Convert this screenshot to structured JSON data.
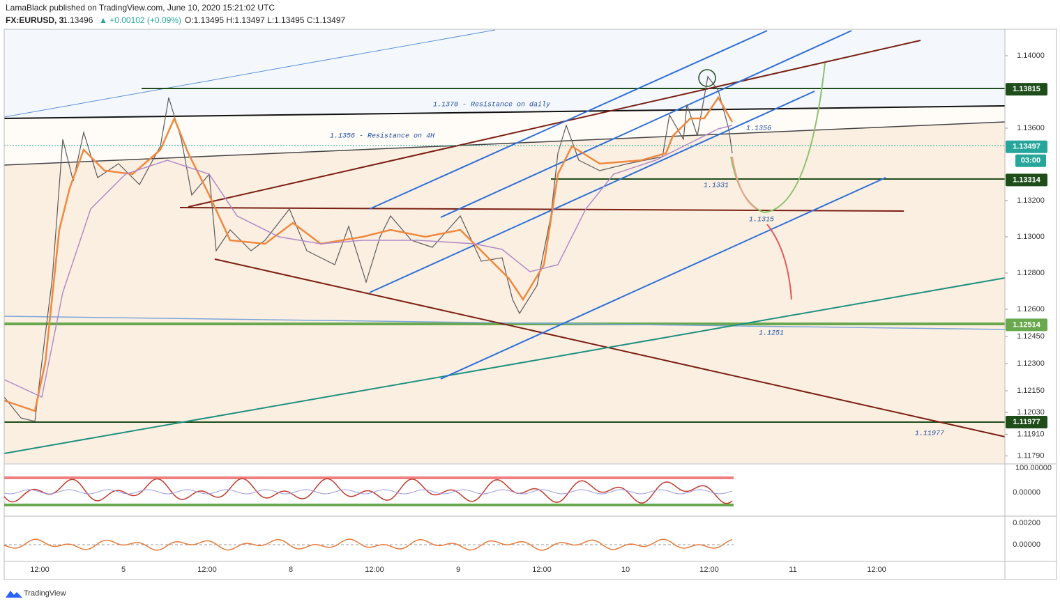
{
  "header": {
    "publisher": "LamaBlack published on TradingView.com, June 10, 2020 15:21:02 UTC",
    "symbol": "FX:EURUSD, 3",
    "last": "1.13496",
    "change": "▲ +0.00102 (+0.09%)",
    "ohlc": "O:1.13495 H:1.13497 L:1.13495 C:1.13497"
  },
  "price_axis": [
    {
      "value": 1.14,
      "label": "1.14000"
    },
    {
      "value": 1.136,
      "label": "1.13600"
    },
    {
      "value": 1.132,
      "label": "1.13200"
    },
    {
      "value": 1.13,
      "label": "1.13000"
    },
    {
      "value": 1.128,
      "label": "1.12800"
    },
    {
      "value": 1.126,
      "label": "1.12600"
    },
    {
      "value": 1.1245,
      "label": "1.12450"
    },
    {
      "value": 1.123,
      "label": "1.12300"
    },
    {
      "value": 1.1215,
      "label": "1.12150"
    },
    {
      "value": 1.1203,
      "label": "1.12030"
    },
    {
      "value": 1.1191,
      "label": "1.11910"
    },
    {
      "value": 1.1179,
      "label": "1.11790"
    }
  ],
  "price_badges": [
    {
      "value": 1.13815,
      "label": "1.13815",
      "color": "#1e4d1a"
    },
    {
      "value": 1.13497,
      "label": "1.13497",
      "color": "#26a69a"
    },
    {
      "value": 1.13314,
      "label": "1.13314",
      "color": "#1e4d1a"
    },
    {
      "value": 1.12514,
      "label": "1.12514",
      "color": "#6aa84f"
    },
    {
      "value": 1.11977,
      "label": "1.11977",
      "color": "#1e4d1a"
    }
  ],
  "countdown": "03:00",
  "annotations": [
    "1.1370 - Resistance on daily",
    "1.1356 - Resistance on 4H",
    "1.1356",
    "1.1331",
    "1.1315",
    "1.1251",
    "1.11977"
  ],
  "osc1_axis": [
    "100.00000",
    "0.00000"
  ],
  "osc2_axis": [
    "0.00200",
    "0.00000"
  ],
  "time_axis": [
    "12:00",
    "5",
    "12:00",
    "8",
    "12:00",
    "9",
    "12:00",
    "10",
    "12:00",
    "11",
    "12:00"
  ],
  "footer": "TradingView"
}
